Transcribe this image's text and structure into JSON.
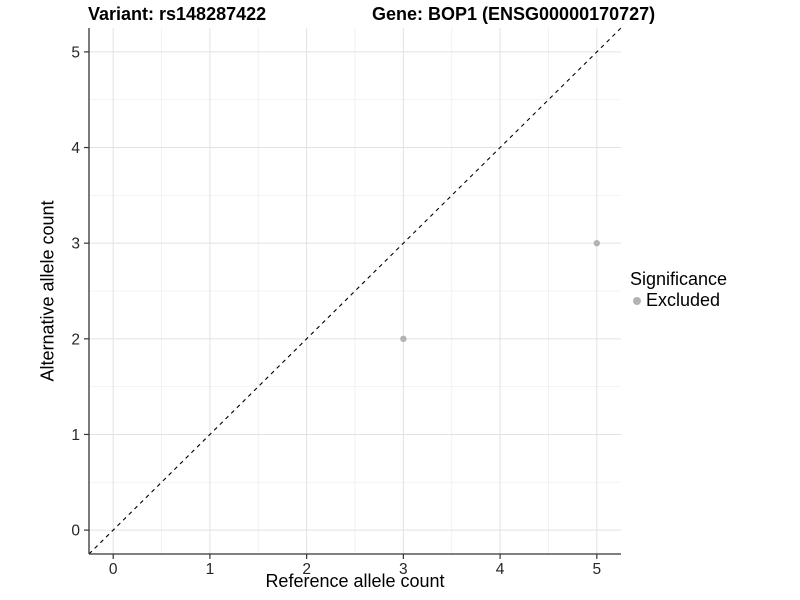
{
  "chart_data": {
    "type": "scatter",
    "titles": {
      "left": "Variant: rs148287422",
      "right": "Gene: BOP1 (ENSG00000170727)"
    },
    "xlabel": "Reference allele count",
    "ylabel": "Alternative allele count",
    "xlim": [
      -0.25,
      5.25
    ],
    "ylim": [
      -0.25,
      5.25
    ],
    "x_ticks": [
      0,
      1,
      2,
      3,
      4,
      5
    ],
    "y_ticks": [
      0,
      1,
      2,
      3,
      4,
      5
    ],
    "grid": "major+minor",
    "reference_line": {
      "type": "identity",
      "from": [
        -0.25,
        -0.25
      ],
      "to": [
        5.25,
        5.25
      ],
      "style": "dashed",
      "color": "#000000"
    },
    "series": [
      {
        "name": "Excluded",
        "point_color": "#B3B3B3",
        "points": [
          [
            3,
            2
          ],
          [
            5,
            3
          ]
        ]
      }
    ],
    "legend": {
      "title": "Significance",
      "position": "right",
      "items": [
        {
          "label": "Excluded",
          "color": "#B3B3B3"
        }
      ]
    }
  },
  "colors": {
    "background": "#FFFFFF",
    "grid_major": "#E2E2E2",
    "grid_minor": "#EFEFEF",
    "axis_line": "#333333",
    "tick_mark": "#333333",
    "tick_label": "#262626",
    "text": "#000000"
  }
}
